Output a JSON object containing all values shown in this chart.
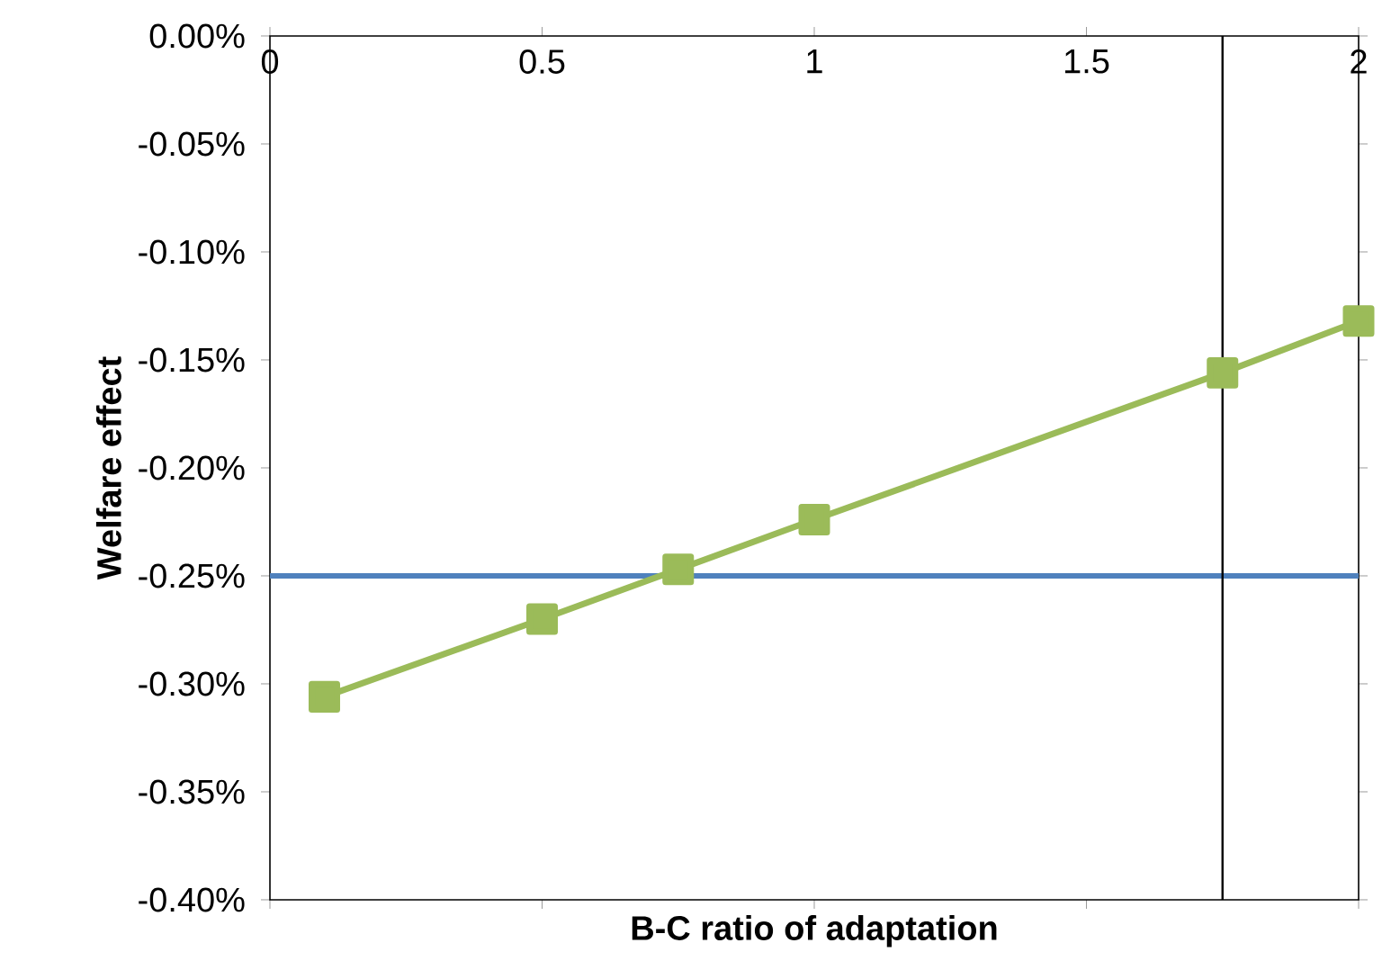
{
  "chart_data": {
    "type": "line",
    "xlabel": "B-C ratio of adaptation",
    "ylabel": "Welfare effect",
    "series": [
      {
        "color": "#9bbb59",
        "x": [
          0.1,
          0.5,
          0.75,
          1,
          1.75,
          2
        ],
        "values": [
          -0.306,
          -0.27,
          -0.247,
          -0.224,
          -0.156,
          -0.132
        ]
      }
    ],
    "marker": "square",
    "line_style": "solid",
    "xlim": [
      0,
      2
    ],
    "xticks": [
      0,
      0.5,
      1,
      1.5,
      2
    ],
    "ylim": [
      -0.4,
      0
    ],
    "yticks": [
      {
        "value": -0.4,
        "label": "-0.40%"
      },
      {
        "value": -0.35,
        "label": "-0.35%"
      },
      {
        "value": -0.3,
        "label": "-0.30%"
      },
      {
        "value": -0.25,
        "label": "-0.25%"
      },
      {
        "value": -0.2,
        "label": "-0.20%"
      },
      {
        "value": -0.15,
        "label": "-0.15%"
      },
      {
        "value": -0.1,
        "label": "-0.10%"
      },
      {
        "value": -0.05,
        "label": "-0.05%"
      },
      {
        "value": 0,
        "label": "0.00%"
      }
    ],
    "ref_lines": [
      {
        "axis": "y",
        "value": -0.25,
        "color": "#4f81bd"
      },
      {
        "axis": "x",
        "value": 1.75,
        "color": "#000000"
      }
    ]
  }
}
